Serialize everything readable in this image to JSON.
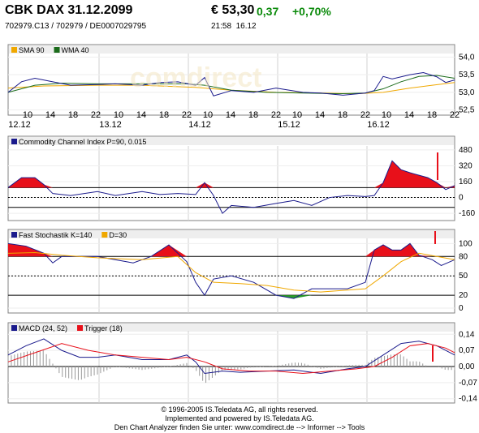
{
  "header": {
    "title": "CBK DAX 31.12.2099",
    "price": "€ 53,30",
    "change": "0,37",
    "change_pct": "+0,70%",
    "ids": "702979.C13  /  702979  /  DE0007029795",
    "time": "21:58",
    "date": "16.12"
  },
  "colors": {
    "blue": "#1a1a8c",
    "orange": "#f0a800",
    "green": "#1b6b1b",
    "red": "#e8101a",
    "fill_red": "#e8101a",
    "fill_green": "#2aa02a",
    "grid": "#d0d0d0",
    "frame": "#808080",
    "legend_bg": "#eeeeee"
  },
  "time_axis": {
    "hour_labels": [
      "10",
      "14",
      "18",
      "22",
      "10",
      "14",
      "18",
      "22",
      "10",
      "14",
      "18",
      "22",
      "10",
      "14",
      "18",
      "22",
      "10",
      "14",
      "18",
      "22"
    ],
    "day_labels": [
      "12.12",
      "13.12",
      "14.12",
      "15.12",
      "16.12"
    ]
  },
  "watermark": "comdirect",
  "chart_data": [
    {
      "id": "price",
      "type": "line",
      "legend": [
        {
          "name": "SMA 90",
          "color": "#f0a800"
        },
        {
          "name": "WMA 40",
          "color": "#1b6b1b"
        }
      ],
      "yticks": [
        "54,0",
        "53,5",
        "53,0",
        "52,5"
      ],
      "tick_values": [
        54.0,
        53.5,
        53.0,
        52.5
      ],
      "ylim": [
        52.4,
        54.1
      ],
      "series": [
        {
          "name": "SMA 90",
          "color": "#f0a800",
          "t": [
            0,
            0.08,
            0.2,
            0.3,
            0.42,
            0.5,
            0.6,
            0.7,
            0.78,
            0.84,
            0.9,
            0.95,
            1.0
          ],
          "y": [
            53.12,
            53.18,
            53.2,
            53.2,
            53.14,
            53.06,
            53.0,
            52.98,
            52.96,
            53.0,
            53.12,
            53.2,
            53.28
          ]
        },
        {
          "name": "WMA 40",
          "color": "#1b6b1b",
          "t": [
            0,
            0.06,
            0.12,
            0.2,
            0.3,
            0.4,
            0.44,
            0.5,
            0.58,
            0.66,
            0.74,
            0.8,
            0.84,
            0.88,
            0.92,
            0.96,
            1.0
          ],
          "y": [
            53.0,
            53.2,
            53.26,
            53.24,
            53.24,
            53.24,
            53.2,
            53.06,
            53.0,
            52.98,
            52.96,
            52.98,
            53.1,
            53.3,
            53.45,
            53.48,
            53.4
          ]
        },
        {
          "name": "price",
          "color": "#1a1a8c",
          "t": [
            0,
            0.03,
            0.06,
            0.1,
            0.14,
            0.2,
            0.24,
            0.3,
            0.34,
            0.38,
            0.42,
            0.44,
            0.46,
            0.5,
            0.55,
            0.6,
            0.66,
            0.7,
            0.75,
            0.8,
            0.82,
            0.84,
            0.86,
            0.9,
            0.93,
            0.96,
            0.98,
            1.0
          ],
          "y": [
            53.0,
            53.3,
            53.4,
            53.3,
            53.2,
            53.22,
            53.24,
            53.2,
            53.28,
            53.3,
            53.2,
            53.42,
            52.9,
            53.05,
            53.0,
            53.12,
            53.0,
            52.98,
            52.92,
            52.98,
            53.05,
            53.45,
            53.38,
            53.5,
            53.56,
            53.44,
            53.28,
            53.35
          ]
        }
      ]
    },
    {
      "id": "cci",
      "type": "area",
      "legend": [
        {
          "name": "Commodity Channel Index P=90, 0.015",
          "color": "#1a1a8c"
        }
      ],
      "yticks": [
        "480",
        "320",
        "160",
        "0",
        "-160"
      ],
      "tick_values": [
        480,
        320,
        160,
        0,
        -160
      ],
      "ylim": [
        -200,
        520
      ],
      "threshold": 100,
      "dotted": [
        0
      ],
      "solid": [
        100,
        -100
      ],
      "series": [
        {
          "name": "CCI",
          "color": "#1a1a8c",
          "t": [
            0,
            0.03,
            0.06,
            0.08,
            0.1,
            0.14,
            0.2,
            0.24,
            0.3,
            0.34,
            0.38,
            0.42,
            0.44,
            0.46,
            0.48,
            0.5,
            0.55,
            0.6,
            0.64,
            0.68,
            0.72,
            0.76,
            0.8,
            0.82,
            0.84,
            0.86,
            0.88,
            0.9,
            0.94,
            0.96,
            0.98,
            1.0
          ],
          "y": [
            100,
            200,
            200,
            130,
            40,
            20,
            60,
            20,
            60,
            30,
            40,
            30,
            150,
            20,
            -160,
            -80,
            -100,
            -60,
            -30,
            -80,
            0,
            20,
            10,
            20,
            150,
            370,
            280,
            250,
            200,
            150,
            80,
            120
          ]
        }
      ]
    },
    {
      "id": "stoch",
      "type": "area",
      "legend": [
        {
          "name": "Fast Stochastik K=140",
          "color": "#1a1a8c"
        },
        {
          "name": "D=30",
          "color": "#f0a800"
        }
      ],
      "yticks": [
        "100",
        "80",
        "50",
        "20",
        "0"
      ],
      "tick_values": [
        100,
        80,
        50,
        20,
        0
      ],
      "ylim": [
        -5,
        108
      ],
      "upper": 80,
      "lower": 20,
      "dotted": [
        50
      ],
      "series": [
        {
          "name": "K",
          "color": "#1a1a8c",
          "t": [
            0,
            0.04,
            0.08,
            0.1,
            0.12,
            0.2,
            0.28,
            0.32,
            0.36,
            0.4,
            0.42,
            0.44,
            0.46,
            0.5,
            0.55,
            0.6,
            0.64,
            0.68,
            0.72,
            0.76,
            0.8,
            0.82,
            0.84,
            0.86,
            0.88,
            0.9,
            0.92,
            0.95,
            0.97,
            1.0
          ],
          "y": [
            100,
            96,
            85,
            70,
            80,
            80,
            70,
            80,
            98,
            72,
            40,
            20,
            45,
            50,
            40,
            20,
            15,
            30,
            30,
            30,
            40,
            90,
            98,
            90,
            90,
            100,
            82,
            75,
            66,
            75
          ]
        },
        {
          "name": "D",
          "color": "#f0a800",
          "t": [
            0,
            0.06,
            0.12,
            0.2,
            0.3,
            0.38,
            0.42,
            0.46,
            0.52,
            0.58,
            0.64,
            0.7,
            0.76,
            0.8,
            0.84,
            0.88,
            0.92,
            0.96,
            1.0
          ],
          "y": [
            85,
            86,
            82,
            78,
            75,
            80,
            55,
            40,
            38,
            35,
            28,
            25,
            28,
            30,
            50,
            72,
            85,
            80,
            75
          ]
        }
      ]
    },
    {
      "id": "macd",
      "type": "line",
      "legend": [
        {
          "name": "MACD (24, 52)",
          "color": "#1a1a8c"
        },
        {
          "name": "Trigger (18)",
          "color": "#e8101a"
        }
      ],
      "yticks": [
        "0,14",
        "0,07",
        "0,00",
        "-0,07",
        "-0,14"
      ],
      "tick_values": [
        0.14,
        0.07,
        0.0,
        -0.07,
        -0.14
      ],
      "ylim": [
        -0.155,
        0.155
      ],
      "series": [
        {
          "name": "MACD (24, 52)",
          "color": "#1a1a8c",
          "t": [
            0,
            0.04,
            0.08,
            0.12,
            0.16,
            0.2,
            0.24,
            0.3,
            0.36,
            0.4,
            0.42,
            0.44,
            0.48,
            0.52,
            0.58,
            0.64,
            0.7,
            0.76,
            0.8,
            0.84,
            0.88,
            0.92,
            0.96,
            1.0
          ],
          "y": [
            0.05,
            0.09,
            0.12,
            0.07,
            0.04,
            0.04,
            0.05,
            0.03,
            0.03,
            0.05,
            0.02,
            -0.03,
            -0.02,
            -0.025,
            -0.02,
            -0.015,
            -0.03,
            -0.01,
            0.0,
            0.05,
            0.1,
            0.11,
            0.09,
            0.05
          ]
        },
        {
          "name": "Trigger (18)",
          "color": "#e8101a",
          "t": [
            0,
            0.06,
            0.12,
            0.18,
            0.24,
            0.3,
            0.36,
            0.4,
            0.44,
            0.48,
            0.54,
            0.6,
            0.66,
            0.72,
            0.78,
            0.82,
            0.86,
            0.9,
            0.94,
            0.98,
            1.0
          ],
          "y": [
            0.02,
            0.06,
            0.1,
            0.07,
            0.05,
            0.04,
            0.03,
            0.04,
            0.02,
            -0.01,
            -0.02,
            -0.02,
            -0.03,
            -0.02,
            -0.01,
            0.0,
            0.04,
            0.09,
            0.1,
            0.08,
            0.06
          ]
        }
      ]
    }
  ],
  "footer": {
    "line1": "© 1996-2005 IS.Teledata AG, all rights reserved.",
    "line2": "Implemented and powered by IS.Teledata AG.",
    "line3": "Den Chart Analyzer finden Sie unter: www.comdirect.de --> Informer --> Tools"
  }
}
